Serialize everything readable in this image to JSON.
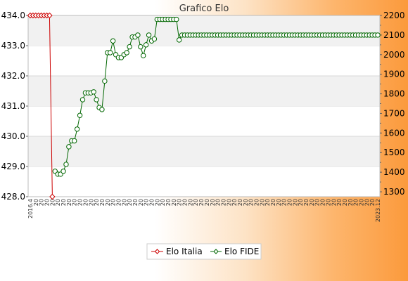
{
  "chart_data": {
    "type": "line",
    "title": "Grafico Elo",
    "colors": {
      "italia": "#cc0000",
      "fide": "#006600"
    },
    "y_left": {
      "ticks": [
        "428.0",
        "429.0",
        "430.0",
        "431.0",
        "432.0",
        "433.0",
        "434.0"
      ],
      "range": [
        428,
        434
      ]
    },
    "y_right": {
      "ticks": [
        "1300",
        "1400",
        "1500",
        "1600",
        "1700",
        "1800",
        "1900",
        "2000",
        "2100",
        "2200"
      ],
      "range": [
        1275,
        2200
      ]
    },
    "x_first_label": "2016.4",
    "x_last_label": "2023.12",
    "x_label_fragment": "20",
    "series": [
      {
        "name": "Elo Italia",
        "axis": "left",
        "points": [
          [
            0,
            434
          ],
          [
            1,
            434
          ],
          [
            2,
            434
          ],
          [
            3,
            434
          ],
          [
            4,
            434
          ],
          [
            5,
            434
          ],
          [
            6,
            434
          ],
          [
            7,
            434
          ],
          [
            8,
            428
          ]
        ]
      },
      {
        "name": "Elo FIDE",
        "axis": "right",
        "points": [
          [
            9,
            1405
          ],
          [
            10,
            1390
          ],
          [
            11,
            1390
          ],
          [
            12,
            1405
          ],
          [
            13,
            1440
          ],
          [
            14,
            1530
          ],
          [
            15,
            1560
          ],
          [
            16,
            1560
          ],
          [
            17,
            1620
          ],
          [
            18,
            1690
          ],
          [
            19,
            1770
          ],
          [
            20,
            1805
          ],
          [
            21,
            1805
          ],
          [
            22,
            1805
          ],
          [
            23,
            1810
          ],
          [
            24,
            1770
          ],
          [
            25,
            1730
          ],
          [
            26,
            1720
          ],
          [
            27,
            1865
          ],
          [
            28,
            2010
          ],
          [
            29,
            2010
          ],
          [
            30,
            2070
          ],
          [
            31,
            2000
          ],
          [
            32,
            1985
          ],
          [
            33,
            1985
          ],
          [
            34,
            2000
          ],
          [
            35,
            2010
          ],
          [
            36,
            2040
          ],
          [
            37,
            2090
          ],
          [
            38,
            2090
          ],
          [
            39,
            2100
          ],
          [
            40,
            2040
          ],
          [
            41,
            1995
          ],
          [
            42,
            2050
          ],
          [
            43,
            2100
          ],
          [
            44,
            2070
          ],
          [
            45,
            2080
          ],
          [
            46,
            2180
          ],
          [
            47,
            2180
          ],
          [
            48,
            2180
          ],
          [
            49,
            2180
          ],
          [
            50,
            2180
          ],
          [
            51,
            2180
          ],
          [
            52,
            2180
          ],
          [
            53,
            2180
          ],
          [
            54,
            2075
          ],
          [
            55,
            2100
          ],
          [
            56,
            2100
          ],
          [
            57,
            2100
          ],
          [
            58,
            2100
          ],
          [
            59,
            2100
          ],
          [
            60,
            2100
          ],
          [
            61,
            2100
          ],
          [
            62,
            2100
          ],
          [
            63,
            2100
          ],
          [
            64,
            2100
          ],
          [
            65,
            2100
          ],
          [
            66,
            2100
          ],
          [
            67,
            2100
          ],
          [
            68,
            2100
          ],
          [
            69,
            2100
          ],
          [
            70,
            2100
          ],
          [
            71,
            2100
          ],
          [
            72,
            2100
          ],
          [
            73,
            2100
          ],
          [
            74,
            2100
          ],
          [
            75,
            2100
          ],
          [
            76,
            2100
          ],
          [
            77,
            2100
          ],
          [
            78,
            2100
          ],
          [
            79,
            2100
          ],
          [
            80,
            2100
          ],
          [
            81,
            2100
          ],
          [
            82,
            2100
          ],
          [
            83,
            2100
          ],
          [
            84,
            2100
          ],
          [
            85,
            2100
          ],
          [
            86,
            2100
          ],
          [
            87,
            2100
          ],
          [
            88,
            2100
          ],
          [
            89,
            2100
          ],
          [
            90,
            2100
          ],
          [
            91,
            2100
          ],
          [
            92,
            2100
          ],
          [
            93,
            2100
          ],
          [
            94,
            2100
          ],
          [
            95,
            2100
          ],
          [
            96,
            2100
          ],
          [
            97,
            2100
          ],
          [
            98,
            2100
          ],
          [
            99,
            2100
          ],
          [
            100,
            2100
          ],
          [
            101,
            2100
          ],
          [
            102,
            2100
          ],
          [
            103,
            2100
          ],
          [
            104,
            2100
          ],
          [
            105,
            2100
          ],
          [
            106,
            2100
          ],
          [
            107,
            2100
          ],
          [
            108,
            2100
          ],
          [
            109,
            2100
          ],
          [
            110,
            2100
          ],
          [
            111,
            2100
          ],
          [
            112,
            2100
          ],
          [
            113,
            2100
          ],
          [
            114,
            2100
          ],
          [
            115,
            2100
          ],
          [
            116,
            2100
          ],
          [
            117,
            2100
          ],
          [
            118,
            2100
          ],
          [
            119,
            2100
          ],
          [
            120,
            2100
          ],
          [
            121,
            2100
          ],
          [
            122,
            2100
          ],
          [
            123,
            2100
          ],
          [
            124,
            2100
          ],
          [
            125,
            2100
          ],
          [
            126,
            2100
          ]
        ]
      }
    ],
    "legend": {
      "position": "bottom-center",
      "entries": [
        "Elo Italia",
        "Elo FIDE"
      ]
    }
  }
}
